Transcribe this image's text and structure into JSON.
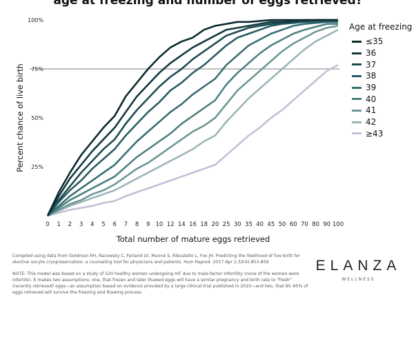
{
  "chart_data": {
    "type": "line",
    "title": "age at freezing and number of eggs retrieved?",
    "xlabel": "Total number of mature eggs retrieved",
    "ylabel": "Percent chance of live birth",
    "x_ticks": [
      "0",
      "1",
      "2",
      "3",
      "4",
      "5",
      "6",
      "7",
      "8",
      "9",
      "10",
      "12",
      "14",
      "16",
      "18",
      "20",
      "25",
      "30",
      "35",
      "40",
      "45",
      "50",
      "60",
      "70",
      "80",
      "90",
      "100"
    ],
    "y_ticks": [
      {
        "value": 25,
        "label": "25%"
      },
      {
        "value": 50,
        "label": "50%"
      },
      {
        "value": 75,
        "label": "75%"
      },
      {
        "value": 100,
        "label": "100%"
      }
    ],
    "ylim": [
      0,
      100
    ],
    "reference_line": 75,
    "legend_title": "Age at freezing",
    "legend_position": "right",
    "series": [
      {
        "name": "≤35",
        "color": "#0d2a2f",
        "values": [
          0,
          12,
          22,
          31,
          38,
          45,
          51,
          61,
          68,
          75,
          81,
          86,
          89,
          91,
          95,
          97,
          98,
          99,
          99,
          99.5,
          100,
          100,
          100,
          100,
          100,
          100,
          100
        ]
      },
      {
        "name": "36",
        "color": "#143840",
        "values": [
          0,
          10,
          19,
          26,
          33,
          39,
          45,
          53,
          61,
          67,
          73,
          78,
          82,
          86,
          89,
          92,
          95,
          96,
          97,
          98,
          99,
          99,
          99.5,
          100,
          100,
          100,
          100
        ]
      },
      {
        "name": "37",
        "color": "#1c4a51",
        "values": [
          0,
          8,
          15,
          22,
          28,
          34,
          39,
          47,
          54,
          60,
          66,
          71,
          75,
          80,
          84,
          88,
          92,
          94,
          96,
          97,
          98,
          98.5,
          99,
          99.5,
          100,
          100,
          100
        ]
      },
      {
        "name": "38",
        "color": "#275c62",
        "values": [
          0,
          7,
          13,
          18,
          24,
          29,
          34,
          41,
          47,
          53,
          58,
          64,
          68,
          73,
          77,
          82,
          87,
          91,
          93,
          95,
          97,
          98,
          98.5,
          99,
          99,
          99.5,
          100
        ]
      },
      {
        "name": "39",
        "color": "#376e72",
        "values": [
          0,
          5,
          10,
          14,
          18,
          22,
          26,
          32,
          38,
          43,
          48,
          53,
          57,
          62,
          66,
          70,
          77,
          82,
          87,
          90,
          93,
          95,
          97,
          98,
          98.5,
          99,
          99
        ]
      },
      {
        "name": "40",
        "color": "#4e8082",
        "values": [
          0,
          4,
          8,
          11,
          14,
          17,
          20,
          25,
          30,
          34,
          38,
          42,
          47,
          51,
          55,
          59,
          67,
          73,
          78,
          83,
          87,
          90,
          93,
          95,
          96.5,
          98,
          98
        ]
      },
      {
        "name": "41",
        "color": "#6e9596",
        "values": [
          0,
          3,
          6,
          8,
          11,
          13,
          16,
          20,
          24,
          27,
          31,
          35,
          39,
          43,
          46,
          50,
          57,
          64,
          69,
          74,
          79,
          84,
          88,
          91,
          94,
          96,
          97
        ]
      },
      {
        "name": "42",
        "color": "#9bb3b8",
        "values": [
          0,
          2.5,
          5,
          7,
          9,
          11,
          13,
          16,
          19,
          22,
          25,
          28,
          31,
          34,
          38,
          41,
          48,
          54,
          60,
          65,
          70,
          75,
          80,
          85,
          89,
          92,
          95
        ]
      },
      {
        "name": "≥43",
        "color": "#c0c0d6",
        "values": [
          0,
          1.5,
          3,
          4,
          5,
          6.5,
          7.5,
          10,
          12,
          14,
          16,
          18,
          20,
          22,
          24,
          26,
          31,
          36,
          41,
          45,
          50,
          54,
          59,
          64,
          69,
          74,
          77
        ]
      }
    ]
  },
  "source_text": "Compiled using data from Goldman RH, Racowsky C, Farland LV, Munné S, Ribustello L, Fox JH. Predicting the likelihood of live birth for elective oocyte cryopreservation: a counseling tool for physicians and patients. Hum Reprod. 2017 Apr 1;32(4):853-859",
  "note_text": "NOTE: This model was based on a study of 520 healthy women undergoing IVF due to male-factor infertility (none of the women were infertile). It makes two assumptions: one, that frozen and later thawed eggs will have a similar pregnancy and birth rate to \"fresh\" (recently retrieved) eggs—an assumption based on evidence provided by a large clinical trial published in 2010—and two, that 85–95% of eggs retrieved will survive the freezing and thawing process.",
  "brand": {
    "name": "ELANZA",
    "subtitle": "WELLNESS"
  }
}
